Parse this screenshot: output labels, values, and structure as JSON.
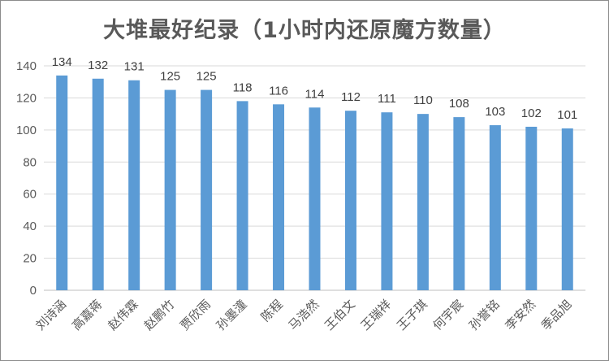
{
  "chart_data": {
    "type": "bar",
    "title": "大堆最好纪录（1小时内还原魔方数量）",
    "categories": [
      "刘诗涵",
      "高嘉蒋",
      "赵伟霖",
      "赵鹏竹",
      "贾欣雨",
      "孙墨潼",
      "陈程",
      "马浩然",
      "王伯文",
      "王瑞祥",
      "王子琪",
      "何宇宸",
      "孙誉铭",
      "李安然",
      "季品旭"
    ],
    "values": [
      134,
      132,
      131,
      125,
      125,
      118,
      116,
      114,
      112,
      111,
      110,
      108,
      103,
      102,
      101
    ],
    "ylim": [
      0,
      140
    ],
    "yticks": [
      "0",
      "20",
      "40",
      "60",
      "80",
      "100",
      "120",
      "140"
    ],
    "grid": true,
    "bar_color": "#5b9bd5",
    "grid_color": "#d9d9d9"
  }
}
